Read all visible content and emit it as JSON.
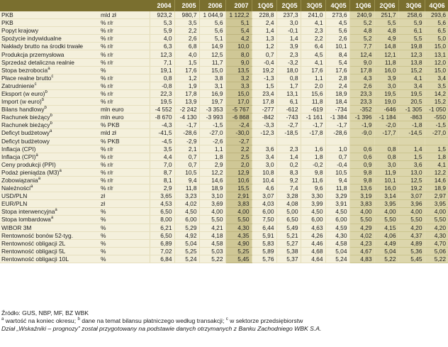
{
  "columns": [
    "2004",
    "2005",
    "2006",
    "2007",
    "1Q05",
    "2Q05",
    "3Q05",
    "4Q05",
    "1Q06",
    "2Q06",
    "3Q06",
    "4Q06"
  ],
  "rows": [
    {
      "label": "PKB",
      "sup": "",
      "unit": "mld zł",
      "values": [
        "923,2",
        "980,7",
        "1 044,9",
        "1 122,2",
        "228,8",
        "237,3",
        "241,0",
        "273,6",
        "240,9",
        "251,7",
        "258,6",
        "293,6"
      ]
    },
    {
      "label": "PKB",
      "sup": "",
      "unit": "% r/r",
      "values": [
        "5,3",
        "3,5",
        "5,6",
        "5,1",
        "2,4",
        "3,0",
        "4,1",
        "4,5",
        "5,2",
        "5,5",
        "5,9",
        "5,6"
      ]
    },
    {
      "label": "Popyt krajowy",
      "sup": "",
      "unit": "% r/r",
      "values": [
        "5,9",
        "2,2",
        "5,6",
        "5,4",
        "1,4",
        "-0,1",
        "2,3",
        "5,6",
        "4,8",
        "4,8",
        "6,1",
        "6,5"
      ]
    },
    {
      "label": "Spożycie indywidualne",
      "sup": "",
      "unit": "% r/r",
      "values": [
        "4,0",
        "2,6",
        "5,1",
        "4,2",
        "1,3",
        "1,4",
        "2,2",
        "2,6",
        "5,2",
        "4,9",
        "5,5",
        "5,0"
      ]
    },
    {
      "label": "Nakłady brutto na środki trwałe",
      "sup": "",
      "unit": "% r/r",
      "values": [
        "6,3",
        "6,8",
        "14,9",
        "10,0",
        "1,2",
        "3,9",
        "6,4",
        "10,1",
        "7,7",
        "14,8",
        "19,8",
        "15,0"
      ]
    },
    {
      "label": "Produkcja przemysłowa",
      "sup": "",
      "unit": "% r/r",
      "values": [
        "12,3",
        "4,0",
        "12,5",
        "8,0",
        "0,7",
        "2,3",
        "4,5",
        "8,4",
        "12,4",
        "12,1",
        "12,3",
        "13,1"
      ]
    },
    {
      "label": "Sprzedaż detaliczna realnie",
      "sup": "",
      "unit": "% r/r",
      "values": [
        "7,1",
        "1,5",
        "11,7",
        "9,0",
        "-0,4",
        "-3,2",
        "4,1",
        "5,4",
        "9,0",
        "11,8",
        "13,8",
        "12,0"
      ]
    },
    {
      "label": "Stopa bezrobocia",
      "sup": "a",
      "unit": "%",
      "values": [
        "19,1",
        "17,6",
        "15,0",
        "13,5",
        "19,2",
        "18,0",
        "17,6",
        "17,6",
        "17,8",
        "16,0",
        "15,2",
        "15,0"
      ]
    },
    {
      "label": "Płace realne brutto",
      "sup": "c",
      "unit": "% r/r",
      "values": [
        "0,8",
        "1,2",
        "3,8",
        "3,2",
        "-1,3",
        "0,8",
        "1,1",
        "2,8",
        "4,3",
        "3,9",
        "4,1",
        "3,4"
      ]
    },
    {
      "label": "Zatrudnienie",
      "sup": "c",
      "unit": "% r/r",
      "values": [
        "-0,8",
        "1,9",
        "3,1",
        "3,3",
        "1,5",
        "1,7",
        "2,0",
        "2,4",
        "2,6",
        "3,0",
        "3,4",
        "3,5"
      ]
    },
    {
      "label": "Eksport (w euro)",
      "sup": "b",
      "unit": "% r/r",
      "values": [
        "22,3",
        "17,8",
        "16,9",
        "15,0",
        "23,4",
        "13,1",
        "15,6",
        "18,9",
        "23,3",
        "19,5",
        "19,5",
        "14,2"
      ]
    },
    {
      "label": "Import (w euro)",
      "sup": "b",
      "unit": "% r/r",
      "values": [
        "19,5",
        "13,9",
        "19,7",
        "17,0",
        "17,8",
        "6,1",
        "11,8",
        "18,4",
        "23,3",
        "19,0",
        "20,5",
        "15,2"
      ]
    },
    {
      "label": "Bilans handlowy",
      "sup": "b",
      "unit": "mln euro",
      "values": [
        "-4 552",
        "-2 242",
        "-3 353",
        "-5 767",
        "-277",
        "-612",
        "-619",
        "-734",
        "-352",
        "-646",
        "-1 305",
        "-1 050"
      ]
    },
    {
      "label": "Rachunek bieżący",
      "sup": "b",
      "unit": "mln euro",
      "values": [
        "-8 670",
        "-4 130",
        "-3 993",
        "-6 868",
        "-842",
        "-743",
        "-1 161",
        "-1 384",
        "-1 396",
        "-1 184",
        "-863",
        "-550"
      ]
    },
    {
      "label": "Rachunek bieżący",
      "sup": "b",
      "unit": "% PKB",
      "values": [
        "-4,3",
        "-1,7",
        "-1,5",
        "-2,4",
        "-3,3",
        "-2,7",
        "-1,7",
        "-1,7",
        "-1,9",
        "-2,0",
        "-1,8",
        "-1,5"
      ]
    },
    {
      "label": "Deficyt budżetowy",
      "sup": "a",
      "unit": "mld zł",
      "values": [
        "-41,5",
        "-28,6",
        "-27,0",
        "-30,0",
        "-12,3",
        "-18,5",
        "-17,8",
        "-28,6",
        "-9,0",
        "-17,7",
        "-14,5",
        "-27,0"
      ]
    },
    {
      "label": "Deficyt budżetowy",
      "sup": "",
      "unit": "% PKB",
      "values": [
        "-4,5",
        "-2,9",
        "-2,6",
        "-2,7",
        "",
        "",
        "",
        "",
        "",
        "",
        "",
        ""
      ]
    },
    {
      "label": "Inflacja (CPI)",
      "sup": "",
      "unit": "% r/r",
      "values": [
        "3,5",
        "2,1",
        "1,1",
        "2,2",
        "3,6",
        "2,3",
        "1,6",
        "1,0",
        "0,6",
        "0,8",
        "1,4",
        "1,5"
      ]
    },
    {
      "label": "Inflacja (CPI)",
      "sup": "a",
      "unit": "% r/r",
      "values": [
        "4,4",
        "0,7",
        "1,8",
        "2,5",
        "3,4",
        "1,4",
        "1,8",
        "0,7",
        "0,6",
        "0,8",
        "1,5",
        "1,8"
      ]
    },
    {
      "label": "Ceny produkcji (PPI)",
      "sup": "",
      "unit": "% r/r",
      "values": [
        "7,0",
        "0,7",
        "2,9",
        "2,0",
        "3,0",
        "0,2",
        "-0,2",
        "-0,4",
        "0,9",
        "3,0",
        "3,6",
        "4,1"
      ]
    },
    {
      "label": "Podaż pieniądza (M3)",
      "sup": "a",
      "unit": "% r/r",
      "values": [
        "8,7",
        "10,5",
        "12,2",
        "12,9",
        "10,8",
        "8,3",
        "9,8",
        "10,5",
        "9,8",
        "11,9",
        "13,0",
        "12,2"
      ]
    },
    {
      "label": "Zobowiązania",
      "sup": "a",
      "unit": "% r/r",
      "values": [
        "8,1",
        "9,4",
        "14,6",
        "10,6",
        "10,4",
        "9,2",
        "11,6",
        "9,4",
        "9,8",
        "10,1",
        "12,5",
        "14,6"
      ]
    },
    {
      "label": "Należności",
      "sup": "a",
      "unit": "% r/r",
      "values": [
        "2,9",
        "11,8",
        "18,9",
        "15,5",
        "4,6",
        "7,4",
        "9,6",
        "11,8",
        "13,6",
        "16,0",
        "19,2",
        "18,9"
      ]
    },
    {
      "label": "USD/PLN",
      "sup": "",
      "unit": "zł",
      "values": [
        "3,65",
        "3,23",
        "3,10",
        "2,91",
        "3,07",
        "3,28",
        "3,30",
        "3,29",
        "3,19",
        "3,14",
        "3,07",
        "2,97"
      ]
    },
    {
      "label": "EUR/PLN",
      "sup": "",
      "unit": "zł",
      "values": [
        "4,53",
        "4,02",
        "3,69",
        "3,83",
        "4,03",
        "4,08",
        "3,99",
        "3,91",
        "3,83",
        "3,95",
        "3,96",
        "3,95"
      ]
    },
    {
      "label": "Stopa interwencyjna",
      "sup": "a",
      "unit": "%",
      "values": [
        "6,50",
        "4,50",
        "4,00",
        "4,00",
        "6,00",
        "5,00",
        "4,50",
        "4,50",
        "4,00",
        "4,00",
        "4,00",
        "4,00"
      ]
    },
    {
      "label": "Stopa lombardowa",
      "sup": "a",
      "unit": "%",
      "values": [
        "8,00",
        "6,00",
        "5,50",
        "5,50",
        "7,50",
        "6,50",
        "6,00",
        "6,00",
        "5,50",
        "5,50",
        "5,50",
        "5,50"
      ]
    },
    {
      "label": "WIBOR 3M",
      "sup": "",
      "unit": "%",
      "values": [
        "6,21",
        "5,29",
        "4,21",
        "4,30",
        "6,44",
        "5,49",
        "4,63",
        "4,59",
        "4,29",
        "4,15",
        "4,20",
        "4,20"
      ]
    },
    {
      "label": "Rentowność bonów 52-tyg.",
      "sup": "",
      "unit": "%",
      "values": [
        "6,50",
        "4,92",
        "4,18",
        "4,35",
        "5,91",
        "5,21",
        "4,26",
        "4,30",
        "4,02",
        "4,06",
        "4,37",
        "4,30"
      ]
    },
    {
      "label": "Rentowność obligacji 2L",
      "sup": "",
      "unit": "%",
      "values": [
        "6,89",
        "5,04",
        "4,58",
        "4,90",
        "5,83",
        "5,27",
        "4,46",
        "4,58",
        "4,23",
        "4,49",
        "4,89",
        "4,70"
      ]
    },
    {
      "label": "Rentowność obligacji 5L",
      "sup": "",
      "unit": "%",
      "values": [
        "7,02",
        "5,25",
        "5,03",
        "5,25",
        "5,89",
        "5,38",
        "4,68",
        "5,04",
        "4,67",
        "5,04",
        "5,36",
        "5,06"
      ]
    },
    {
      "label": "Rentowność obligacji 10L",
      "sup": "",
      "unit": "%",
      "values": [
        "6,84",
        "5,24",
        "5,22",
        "5,45",
        "5,76",
        "5,37",
        "4,64",
        "5,24",
        "4,83",
        "5,22",
        "5,45",
        "5,22"
      ]
    }
  ],
  "footnotes": {
    "source": "Źródło: GUS, NBP, MF, BZ WBK",
    "notes": [
      {
        "sup": "a",
        "text": " wartość na koniec okresu; "
      },
      {
        "sup": "b",
        "text": " dane na temat bilansu płatniczego według transakcji; "
      },
      {
        "sup": "c",
        "text": " w sektorze przedsiębiorstw"
      }
    ],
    "credit": "Dział „Wskaźniki – prognozy” został przygotowany na podstawie danych otrzymanych z Banku Zachodniego WBK S.A."
  },
  "colors": {
    "header_bg": "#7a6f2f",
    "row_light": "#f4f0dc",
    "col_2007": "#cfc796",
    "col_2006_quarters": "#dcd6ac"
  }
}
